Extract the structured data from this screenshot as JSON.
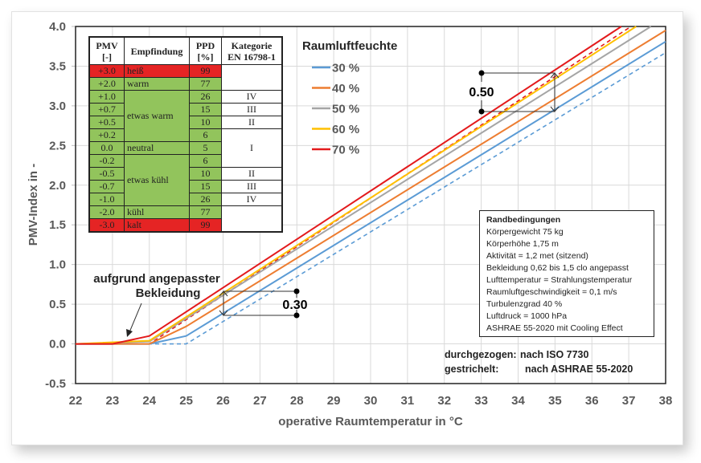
{
  "chart_data": {
    "type": "line",
    "title": "",
    "xlabel": "operative Raumtemperatur in °C",
    "ylabel": "PMV-Index in -",
    "xlim": [
      22,
      38
    ],
    "ylim": [
      -0.5,
      4.0
    ],
    "x_ticks": [
      "22",
      "23",
      "24",
      "25",
      "26",
      "27",
      "28",
      "29",
      "30",
      "31",
      "32",
      "33",
      "34",
      "35",
      "36",
      "37",
      "38"
    ],
    "y_ticks": [
      "4.0",
      "3.5",
      "3.0",
      "2.5",
      "2.0",
      "1.5",
      "1.0",
      "0.5",
      "0.0",
      "-0.5"
    ],
    "grid": true,
    "legend_title": "Raumluftfeuchte",
    "legend_position": "upper-left-center",
    "series": [
      {
        "name": "30 %",
        "standard": "ISO 7730",
        "style": "solid",
        "color": "#5b9bd5",
        "x": [
          22,
          24,
          25,
          38
        ],
        "y": [
          0.0,
          0.0,
          0.1,
          3.81
        ]
      },
      {
        "name": "40 %",
        "standard": "ISO 7730",
        "style": "solid",
        "color": "#ed7d31",
        "x": [
          22,
          24,
          25,
          38
        ],
        "y": [
          0.0,
          0.0,
          0.22,
          3.95
        ]
      },
      {
        "name": "50 %",
        "standard": "ISO 7730",
        "style": "solid",
        "color": "#a5a5a5",
        "x": [
          22,
          24,
          37.6
        ],
        "y": [
          0.0,
          0.03,
          4.0
        ]
      },
      {
        "name": "60 %",
        "standard": "ISO 7730",
        "style": "solid",
        "color": "#ffc000",
        "x": [
          22,
          24,
          37.2
        ],
        "y": [
          0.0,
          0.04,
          4.0
        ]
      },
      {
        "name": "70 %",
        "standard": "ISO 7730",
        "style": "solid",
        "color": "#e31a1c",
        "x": [
          22,
          23,
          24,
          36.8
        ],
        "y": [
          0.0,
          0.0,
          0.1,
          4.0
        ]
      },
      {
        "name": "30 % (ASHRAE)",
        "standard": "ASHRAE 55-2020",
        "style": "dashed",
        "color": "#5b9bd5",
        "x": [
          22,
          25,
          38
        ],
        "y": [
          0.0,
          0.0,
          3.67
        ]
      },
      {
        "name": "70 % (ASHRAE)",
        "standard": "ASHRAE 55-2020",
        "style": "dashed",
        "color": "#e31a1c",
        "x": [
          22,
          24,
          37.06
        ],
        "y": [
          0.0,
          0.0,
          4.0
        ]
      }
    ],
    "annotations": [
      {
        "text": "0.30",
        "type": "bracket",
        "x": 26,
        "y_from": 0.37,
        "y_to": 0.67
      },
      {
        "text": "0.50",
        "type": "bracket",
        "x": 35,
        "y_from": 2.92,
        "y_to": 3.42
      },
      {
        "text": "aufgrund angepasster Bekleidung",
        "type": "arrow",
        "target_x": 23.4,
        "target_y": 0.05
      }
    ]
  },
  "legend": {
    "title": "Raumluftfeuchte",
    "items": [
      {
        "label": "30 %",
        "color": "#5b9bd5"
      },
      {
        "label": "40 %",
        "color": "#ed7d31"
      },
      {
        "label": "50 %",
        "color": "#a5a5a5"
      },
      {
        "label": "60 %",
        "color": "#ffc000"
      },
      {
        "label": "70 %",
        "color": "#e31a1c"
      }
    ]
  },
  "axes": {
    "x_title": "operative Raumtemperatur in °C",
    "y_title": "PMV-Index in -"
  },
  "pmv_table": {
    "headers": {
      "pmv_1": "PMV",
      "pmv_2": "[-]",
      "empfindung": "Empfindung",
      "ppd_1": "PPD",
      "ppd_2": "[%]",
      "kat_1": "Kategorie",
      "kat_2": "EN 16798-1"
    },
    "rows": [
      {
        "pmv": "+3.0",
        "ppd": "99"
      },
      {
        "pmv": "+2.0",
        "ppd": "77"
      },
      {
        "pmv": "+1.0",
        "ppd": "26"
      },
      {
        "pmv": "+0.7",
        "ppd": "15"
      },
      {
        "pmv": "+0.5",
        "ppd": "10"
      },
      {
        "pmv": "+0.2",
        "ppd": "6"
      },
      {
        "pmv": "0.0",
        "ppd": "5"
      },
      {
        "pmv": "-0.2",
        "ppd": "6"
      },
      {
        "pmv": "-0.5",
        "ppd": "10"
      },
      {
        "pmv": "-0.7",
        "ppd": "15"
      },
      {
        "pmv": "-1.0",
        "ppd": "26"
      },
      {
        "pmv": "-2.0",
        "ppd": "77"
      },
      {
        "pmv": "-3.0",
        "ppd": "99"
      }
    ],
    "empfindung": {
      "heiss": "heiß",
      "warm": "warm",
      "etwas_warm": "etwas warm",
      "neutral": "neutral",
      "etwas_kuehl": "etwas kühl",
      "kuehl": "kühl",
      "kalt": "kalt"
    },
    "kategorie": {
      "iv_top": "IV",
      "iii_top": "III",
      "ii_top": "II",
      "i": "I",
      "ii_bottom": "II",
      "iii_bottom": "III",
      "iv_bottom": "IV"
    }
  },
  "info_box": {
    "title": "Randbedingungen",
    "lines": [
      "Körpergewicht 75 kg",
      "Körperhöhe 1,75 m",
      "Aktivität = 1,2 met (sitzend)",
      "Bekleidung 0,62 bis 1,5 clo angepasst",
      "Lufttemperatur = Strahlungstemperatur",
      "Raumluftgeschwindigkeit = 0,1 m/s",
      "Turbulenzgrad 40 %",
      "Luftdruck = 1000 hPa",
      "ASHRAE 55-2020 mit Cooling Effect"
    ]
  },
  "line_style_note": {
    "solid_key": "durchgezogen:",
    "solid_value": "nach ISO 7730",
    "dashed_key": "gestrichelt:",
    "dashed_value": "nach ASHRAE 55-2020"
  },
  "annotations": {
    "bekleidung_line1": "aufgrund angepasster",
    "bekleidung_line2": "Bekleidung",
    "delta_low": "0.30",
    "delta_high": "0.50"
  }
}
